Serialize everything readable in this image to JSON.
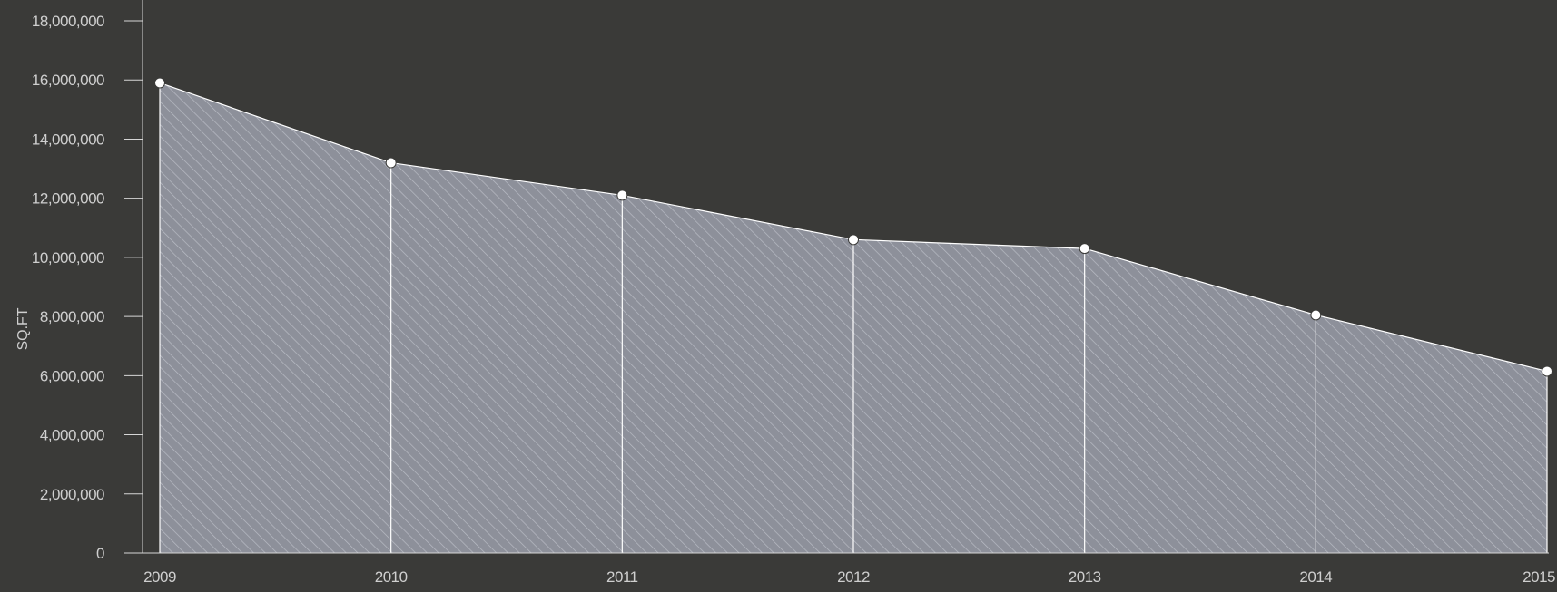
{
  "colors": {
    "background": "#3a3a38",
    "area_fill": "#8d909a",
    "hatch": "#b9bcc4",
    "line": "#ffffff",
    "axis": "#d6d6d6",
    "text": "#cfcfcf"
  },
  "chart_data": {
    "type": "area",
    "title": "",
    "xlabel": "",
    "ylabel": "SQ.FT",
    "ylim": [
      0,
      18000000
    ],
    "grid": false,
    "x": [
      "2009",
      "2010",
      "2011",
      "2012",
      "2013",
      "2014",
      "2015"
    ],
    "values": [
      15900000,
      13200000,
      12100000,
      10600000,
      10300000,
      8050000,
      6150000
    ],
    "y_ticks": [
      0,
      2000000,
      4000000,
      6000000,
      8000000,
      10000000,
      12000000,
      14000000,
      16000000,
      18000000
    ],
    "y_tick_labels": [
      "0",
      "2,000,000",
      "4,000,000",
      "6,000,000",
      "8,000,000",
      "10,000,000",
      "12,000,000",
      "14,000,000",
      "16,000,000",
      "18,000,000"
    ],
    "fill_pattern": "diagonal-hatch",
    "markers": true,
    "drop_lines": true
  }
}
